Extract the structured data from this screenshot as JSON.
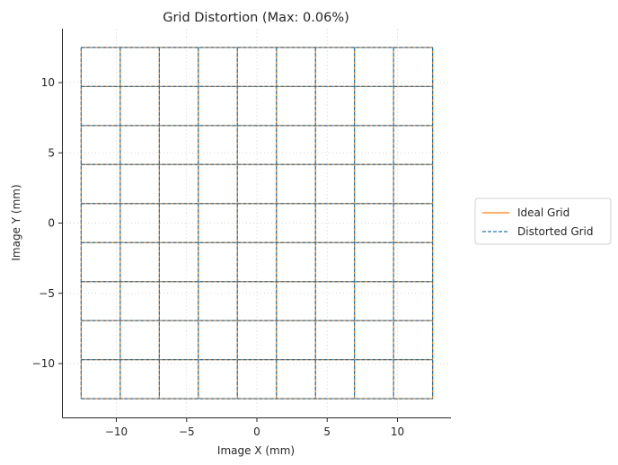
{
  "chart_data": {
    "type": "line",
    "title": "Grid Distortion (Max: 0.06%)",
    "xlabel": "Image X (mm)",
    "ylabel": "Image Y (mm)",
    "xlim": [
      -13.8,
      13.8
    ],
    "ylim": [
      -13.8,
      13.8
    ],
    "xticks": [
      -10,
      -5,
      0,
      5,
      10
    ],
    "yticks": [
      -10,
      -5,
      0,
      5,
      10
    ],
    "xtick_labels": [
      "−10",
      "−5",
      "0",
      "5",
      "10"
    ],
    "ytick_labels": [
      "−10",
      "−5",
      "0",
      "5",
      "10"
    ],
    "grid": true,
    "legend_position": "right",
    "grid_lines": [
      -12.5,
      -9.72,
      -6.94,
      -4.17,
      -1.39,
      1.39,
      4.17,
      6.94,
      9.72,
      12.5
    ],
    "series": [
      {
        "name": "Ideal Grid",
        "style": "solid",
        "color": "#ff7f0e"
      },
      {
        "name": "Distorted Grid",
        "style": "dashed",
        "color": "#1f77b4"
      }
    ]
  }
}
